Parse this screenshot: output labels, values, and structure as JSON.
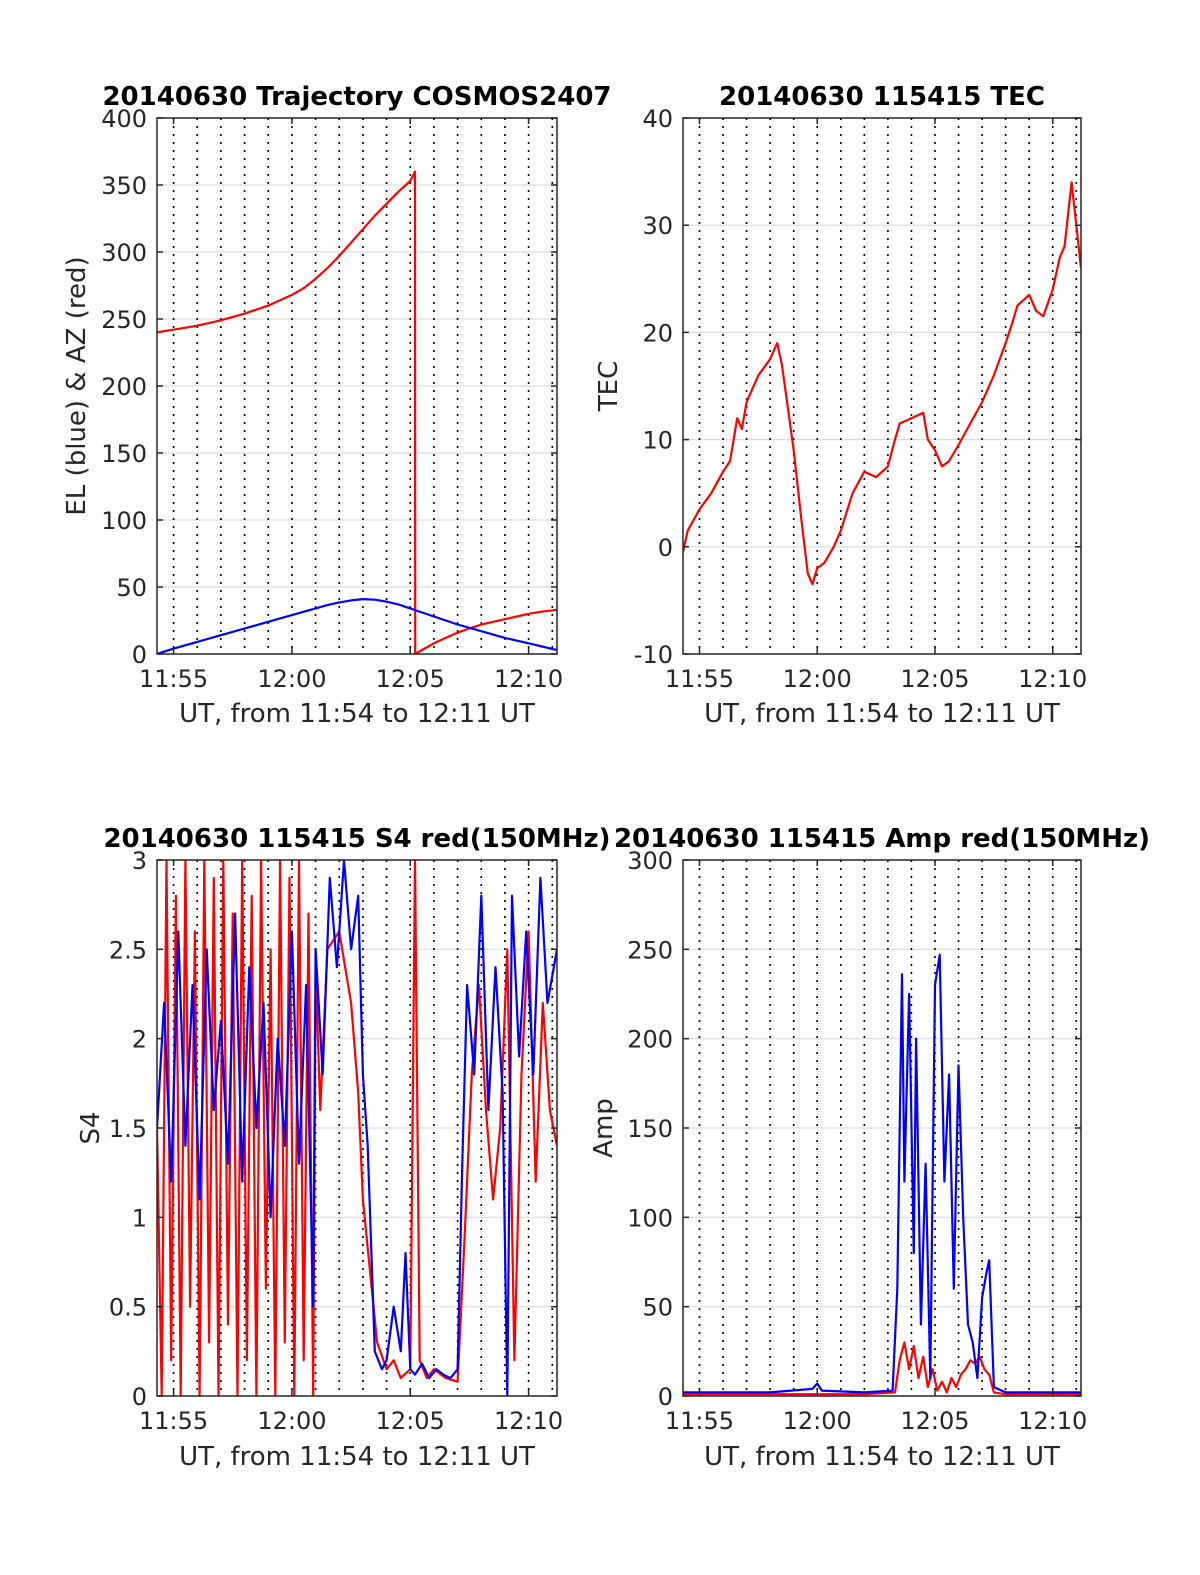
{
  "figure": {
    "date": "20140630"
  },
  "chart_data": [
    {
      "type": "line",
      "title": "20140630 Trajectory COSMOS2407",
      "xlabel": "UT, from 11:54 to 12:11 UT",
      "ylabel": "EL (blue) & AZ (red)",
      "xlim": [
        714.3,
        731.2
      ],
      "ylim": [
        0,
        400
      ],
      "yticks": [
        0,
        50,
        100,
        150,
        200,
        250,
        300,
        350,
        400
      ],
      "xticks": [
        {
          "value": 715,
          "label": "11:55"
        },
        {
          "value": 720,
          "label": "12:00"
        },
        {
          "value": 725,
          "label": "12:05"
        },
        {
          "value": 730,
          "label": "12:10"
        }
      ],
      "grid_x_step_minutes": 1,
      "grid": true,
      "series": [
        {
          "color": "#ff0000",
          "x": [
            714.3,
            715,
            716,
            717,
            718,
            719,
            720,
            720.5,
            721,
            721.5,
            722,
            722.5,
            723,
            723.5,
            724,
            724.5,
            725,
            725.2,
            725.21,
            725.5,
            726,
            726.5,
            727,
            727.5,
            728,
            728.5,
            729,
            729.5,
            730,
            730.5,
            731.2
          ],
          "values": [
            240,
            242,
            245,
            249,
            254,
            260,
            268,
            273,
            280,
            288,
            297,
            307,
            317,
            327,
            336,
            345,
            353,
            360,
            0,
            3,
            8,
            12,
            16,
            19,
            22,
            24,
            26,
            28,
            30,
            31.5,
            33
          ]
        },
        {
          "color": "#0000ff",
          "x": [
            714.3,
            715,
            716,
            717,
            718,
            719,
            720,
            721,
            721.5,
            722,
            722.5,
            723,
            723.5,
            724,
            724.5,
            725,
            725.5,
            726,
            727,
            728,
            729,
            730,
            731.2
          ],
          "values": [
            0,
            4,
            9,
            14,
            19,
            24,
            29,
            34,
            36.5,
            38.5,
            40,
            41,
            40.5,
            39,
            37,
            34,
            31,
            28,
            22,
            17,
            12,
            8,
            3
          ]
        }
      ]
    },
    {
      "type": "line",
      "title": "20140630 115415 TEC",
      "xlabel": "UT, from 11:54 to 12:11 UT",
      "ylabel": "TEC",
      "xlim": [
        714.3,
        731.2
      ],
      "ylim": [
        -10,
        40
      ],
      "yticks": [
        -10,
        0,
        10,
        20,
        30,
        40
      ],
      "xticks": [
        {
          "value": 715,
          "label": "11:55"
        },
        {
          "value": 720,
          "label": "12:00"
        },
        {
          "value": 725,
          "label": "12:05"
        },
        {
          "value": 730,
          "label": "12:10"
        }
      ],
      "grid_x_step_minutes": 1,
      "grid": true,
      "series": [
        {
          "color": "#ff0000",
          "x": [
            714.3,
            714.5,
            715,
            715.5,
            716,
            716.3,
            716.6,
            716.8,
            717,
            717.5,
            718,
            718.3,
            718.5,
            719,
            719.3,
            719.6,
            719.8,
            720,
            720.3,
            720.7,
            721,
            721.5,
            722,
            722.5,
            723,
            723.3,
            723.5,
            724,
            724.5,
            724.7,
            725,
            725.3,
            725.6,
            726,
            726.5,
            727,
            727.5,
            728,
            728.3,
            728.5,
            729,
            729.3,
            729.6,
            730,
            730.3,
            730.5,
            730.8,
            731.2
          ],
          "values": [
            -0.5,
            1.5,
            3.5,
            5,
            7,
            8,
            12,
            11,
            13.5,
            16,
            17.5,
            19,
            17,
            9,
            3,
            -2.5,
            -3.5,
            -2,
            -1.5,
            0,
            1.5,
            5,
            7,
            6.5,
            7.5,
            10,
            11.5,
            12,
            12.5,
            10,
            9,
            7.5,
            8,
            9.5,
            11.5,
            13.5,
            16,
            19,
            21,
            22.5,
            23.5,
            22,
            21.5,
            24,
            27,
            28,
            34,
            26
          ]
        }
      ]
    },
    {
      "type": "line",
      "title": "20140630 115415 S4 red(150MHz)",
      "xlabel": "UT, from 11:54 to 12:11 UT",
      "ylabel": "S4",
      "xlim": [
        714.3,
        731.2
      ],
      "ylim": [
        0,
        3
      ],
      "yticks": [
        0,
        0.5,
        1,
        1.5,
        2,
        2.5,
        3
      ],
      "xticks": [
        {
          "value": 715,
          "label": "11:55"
        },
        {
          "value": 720,
          "label": "12:00"
        },
        {
          "value": 725,
          "label": "12:05"
        },
        {
          "value": 730,
          "label": "12:10"
        }
      ],
      "grid_x_step_minutes": 1,
      "grid": true,
      "series": [
        {
          "color": "#ff0000",
          "x": [
            714.3,
            714.5,
            714.7,
            714.9,
            715.1,
            715.3,
            715.5,
            715.7,
            715.9,
            716.1,
            716.3,
            716.5,
            716.7,
            716.9,
            717.1,
            717.3,
            717.5,
            717.7,
            717.9,
            718.1,
            718.3,
            718.5,
            718.7,
            718.9,
            719.1,
            719.3,
            719.5,
            719.7,
            719.9,
            720.1,
            720.3,
            720.5,
            720.7,
            720.9,
            721,
            721.2,
            721.5,
            722,
            722.5,
            722.8,
            723,
            723.3,
            723.6,
            724,
            724.3,
            724.6,
            725,
            725.2,
            725.4,
            725.7,
            726,
            726.5,
            727,
            727.3,
            727.6,
            727.9,
            728.2,
            728.5,
            728.8,
            729.1,
            729.4,
            729.7,
            730,
            730.3,
            730.6,
            730.9,
            731.2
          ],
          "values": [
            1.5,
            0,
            3,
            0.2,
            2.8,
            0,
            3,
            0.5,
            2.6,
            0,
            3,
            0.3,
            2.9,
            0,
            3,
            0.4,
            2.7,
            0,
            3,
            0.2,
            2.8,
            0,
            3,
            0.6,
            2.5,
            0,
            3,
            0.3,
            2.9,
            0,
            3,
            0.2,
            2.7,
            0,
            2.4,
            1.6,
            2.5,
            2.6,
            2.2,
            1.7,
            1.1,
            0.7,
            0.3,
            0.15,
            0.2,
            0.1,
            0.15,
            3,
            0.2,
            0.1,
            0.15,
            0.1,
            0.08,
            0.9,
            1.8,
            2.3,
            1.6,
            1.1,
            1.5,
            2.5,
            0.2,
            1.8,
            2.6,
            1.2,
            2.2,
            1.6,
            1.4
          ]
        },
        {
          "color": "#0000ff",
          "x": [
            714.3,
            714.6,
            714.9,
            715.2,
            715.5,
            715.8,
            716.1,
            716.4,
            716.7,
            717,
            717.3,
            717.6,
            717.9,
            718.2,
            718.5,
            718.8,
            719.1,
            719.4,
            719.7,
            720,
            720.3,
            720.6,
            720.9,
            721,
            721.3,
            721.6,
            721.9,
            722.2,
            722.5,
            722.8,
            723,
            723.2,
            723.5,
            723.8,
            724,
            724.3,
            724.6,
            724.8,
            725,
            725.2,
            725.5,
            725.8,
            726.1,
            726.4,
            726.7,
            727,
            727.2,
            727.4,
            727.7,
            728,
            728.3,
            728.6,
            728.9,
            729.1,
            729.3,
            729.6,
            729.9,
            730.2,
            730.5,
            730.8,
            731.2
          ],
          "values": [
            1.5,
            2.2,
            1.2,
            2.6,
            1.4,
            2.3,
            1.1,
            2.5,
            1.6,
            2.1,
            1.3,
            2.7,
            1.2,
            2.4,
            1.5,
            2.2,
            1.0,
            2.0,
            1.4,
            2.6,
            1.3,
            2.3,
            0.5,
            2.5,
            1.8,
            2.9,
            2.4,
            3,
            2.5,
            2.8,
            1.8,
            1.4,
            0.25,
            0.15,
            0.2,
            0.5,
            0.25,
            0.8,
            0.15,
            0.12,
            0.18,
            0.1,
            0.15,
            0.12,
            0.1,
            0.15,
            1.3,
            2.3,
            1.8,
            2.8,
            1.6,
            2.4,
            1.7,
            0,
            2.8,
            1.9,
            2.6,
            1.8,
            2.9,
            2.2,
            2.5
          ]
        }
      ]
    },
    {
      "type": "line",
      "title": "20140630 115415 Amp red(150MHz)",
      "xlabel": "UT, from 11:54 to 12:11 UT",
      "ylabel": "Amp",
      "xlim": [
        714.3,
        731.2
      ],
      "ylim": [
        0,
        300
      ],
      "yticks": [
        0,
        50,
        100,
        150,
        200,
        250,
        300
      ],
      "xticks": [
        {
          "value": 715,
          "label": "11:55"
        },
        {
          "value": 720,
          "label": "12:00"
        },
        {
          "value": 725,
          "label": "12:05"
        },
        {
          "value": 730,
          "label": "12:10"
        }
      ],
      "grid_x_step_minutes": 1,
      "grid": true,
      "series": [
        {
          "color": "#ff0000",
          "x": [
            714.3,
            716,
            718,
            720,
            722,
            723.3,
            723.5,
            723.7,
            723.9,
            724.1,
            724.3,
            724.5,
            724.7,
            724.9,
            725.1,
            725.3,
            725.5,
            725.7,
            725.9,
            726.1,
            726.3,
            726.5,
            726.7,
            726.9,
            727.1,
            727.3,
            727.5,
            728,
            730,
            731.2
          ],
          "values": [
            1,
            1,
            1,
            1,
            1,
            2,
            20,
            30,
            15,
            28,
            10,
            22,
            5,
            15,
            3,
            8,
            2,
            10,
            5,
            12,
            15,
            20,
            18,
            22,
            15,
            12,
            2,
            1,
            1,
            1
          ]
        },
        {
          "color": "#0000ff",
          "x": [
            714.3,
            716,
            718,
            719.8,
            720,
            720.2,
            722,
            723.2,
            723.4,
            723.6,
            723.7,
            723.9,
            724.1,
            724.2,
            724.4,
            724.6,
            724.8,
            725,
            725.2,
            725.4,
            725.6,
            725.8,
            726,
            726.2,
            726.4,
            726.6,
            726.8,
            727,
            727.2,
            727.3,
            727.5,
            728,
            730,
            731.2
          ],
          "values": [
            2,
            2,
            2,
            4,
            7,
            3,
            2,
            3,
            60,
            236,
            120,
            225,
            80,
            200,
            40,
            130,
            10,
            230,
            247,
            120,
            180,
            60,
            185,
            100,
            40,
            30,
            10,
            55,
            70,
            76,
            5,
            2,
            2,
            2
          ]
        }
      ]
    }
  ]
}
